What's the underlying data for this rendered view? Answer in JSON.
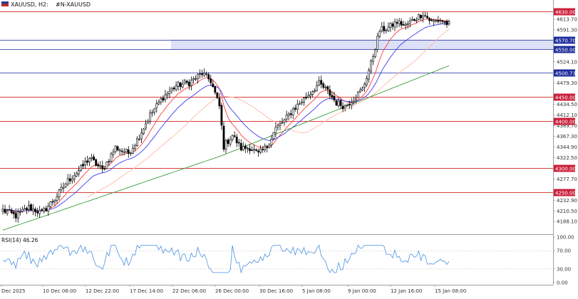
{
  "header": {
    "symbol_info": "XAUUSD, H2:",
    "description": "#N-XAUUSD",
    "flag_icon": "flag-icon"
  },
  "chart_data": {
    "type": "candlestick",
    "symbol": "XAUUSD",
    "timeframe": "H2",
    "price_ticks": [
      4613.7,
      4591.3,
      4524.1,
      4479.3,
      4434.5,
      4412.1,
      4389.7,
      4367.3,
      4344.9,
      4322.5,
      4277.7,
      4232.9,
      4210.5,
      4188.1
    ],
    "ylim": [
      4166,
      4645
    ],
    "time_labels": [
      "Dec 2025",
      "10 Dec 06:00",
      "12 Dec 22:00",
      "17 Dec 14:00",
      "22 Dec 06:00",
      "26 Dec 00:00",
      "30 Dec 16:00",
      "5 Jan 08:00",
      "9 Jan 00:00",
      "12 Jan 16:00",
      "15 Jan 08:00"
    ],
    "price_anchors": [
      [
        0,
        4212
      ],
      [
        6,
        4200
      ],
      [
        12,
        4218
      ],
      [
        18,
        4206
      ],
      [
        24,
        4236
      ],
      [
        30,
        4274
      ],
      [
        36,
        4300
      ],
      [
        40,
        4322
      ],
      [
        46,
        4296
      ],
      [
        52,
        4344
      ],
      [
        58,
        4332
      ],
      [
        62,
        4360
      ],
      [
        68,
        4412
      ],
      [
        74,
        4450
      ],
      [
        80,
        4474
      ],
      [
        86,
        4480
      ],
      [
        92,
        4500
      ],
      [
        96,
        4484
      ],
      [
        100,
        4430
      ],
      [
        102,
        4346
      ],
      [
        106,
        4370
      ],
      [
        110,
        4342
      ],
      [
        114,
        4344
      ],
      [
        118,
        4330
      ],
      [
        122,
        4346
      ],
      [
        126,
        4384
      ],
      [
        130,
        4400
      ],
      [
        134,
        4424
      ],
      [
        140,
        4450
      ],
      [
        146,
        4478
      ],
      [
        150,
        4462
      ],
      [
        154,
        4438
      ],
      [
        158,
        4430
      ],
      [
        162,
        4448
      ],
      [
        166,
        4466
      ],
      [
        170,
        4520
      ],
      [
        174,
        4590
      ],
      [
        178,
        4596
      ],
      [
        182,
        4608
      ],
      [
        186,
        4600
      ],
      [
        190,
        4614
      ],
      [
        194,
        4626
      ],
      [
        198,
        4608
      ],
      [
        202,
        4612
      ],
      [
        206,
        4602
      ]
    ],
    "horizontal_levels": [
      {
        "price": "4630.00",
        "value": 4630.0,
        "color": "#cc0000",
        "label_bg": "#cc1f3a"
      },
      {
        "price": "4570.70",
        "value": 4570.7,
        "color": "#1f2d9c",
        "label_bg": "#1f2d9c"
      },
      {
        "price": "4550.00",
        "value": 4550.0,
        "color": "#1f2d9c",
        "label_bg": "#1f2d9c"
      },
      {
        "price": "4500.73",
        "value": 4500.73,
        "color": "#1f2d9c",
        "label_bg": "#1f2d9c"
      },
      {
        "price": "4450.00",
        "value": 4450.0,
        "color": "#cc0000",
        "label_bg": "#cc1f3a"
      },
      {
        "price": "4400.00",
        "value": 4400.0,
        "color": "#cc0000",
        "label_bg": "#cc1f3a"
      },
      {
        "price": "4300.00",
        "value": 4300.0,
        "color": "#cc0000",
        "label_bg": "#cc1f3a"
      },
      {
        "price": "4250.00",
        "value": 4250.0,
        "color": "#cc0000",
        "label_bg": "#cc1f3a"
      }
    ],
    "zone": {
      "from_price": 4550.0,
      "to_price": 4570.7,
      "color": "#dde1f7"
    },
    "moving_averages": [
      {
        "color": "#ff3b3b",
        "period": 10
      },
      {
        "color": "#3b3bf0",
        "period": 21
      },
      {
        "color": "#ffb9a8",
        "period": 50
      },
      {
        "color": "#3a9e3a",
        "period": 200
      }
    ],
    "rsi": {
      "label": "RSI(14) 46.26",
      "period": 14,
      "value": 46.26,
      "ticks": [
        "100.00",
        "70.00",
        "30.00",
        "0.00"
      ],
      "ylim": [
        0,
        100
      ],
      "levels": [
        70,
        30
      ],
      "color": "#4a90e2"
    }
  }
}
